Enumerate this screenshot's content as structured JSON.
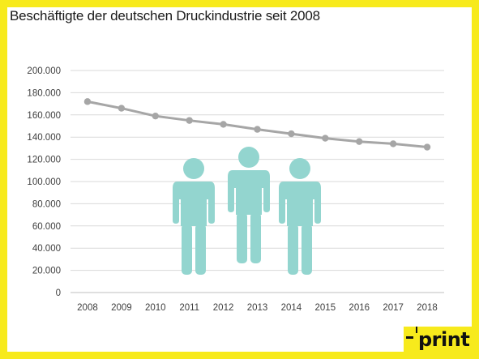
{
  "title": "Beschäftigte der deutschen Druckindustrie seit 2008",
  "logo": {
    "text": "print"
  },
  "colors": {
    "frame": "#f7ea1c",
    "line": "#a6a6a6",
    "icon": "#93d5cf",
    "grid": "#d9d9d9"
  },
  "icons": [
    "person-icon",
    "person-icon",
    "person-icon"
  ],
  "chart_data": {
    "type": "line",
    "title": "Beschäftigte der deutschen Druckindustrie seit 2008",
    "xlabel": "",
    "ylabel": "",
    "categories": [
      "2008",
      "2009",
      "2010",
      "2011",
      "2012",
      "2013",
      "2014",
      "2015",
      "2016",
      "2017",
      "2018"
    ],
    "values": [
      172000,
      166000,
      159000,
      155000,
      151500,
      147000,
      143000,
      139000,
      136000,
      134000,
      131000
    ],
    "ylim": [
      0,
      200000
    ],
    "yticks": [
      "0",
      "20.000",
      "40.000",
      "60.000",
      "80.000",
      "100.000",
      "120.000",
      "140.000",
      "160.000",
      "180.000",
      "200.000"
    ],
    "grid": true,
    "legend": "none"
  }
}
